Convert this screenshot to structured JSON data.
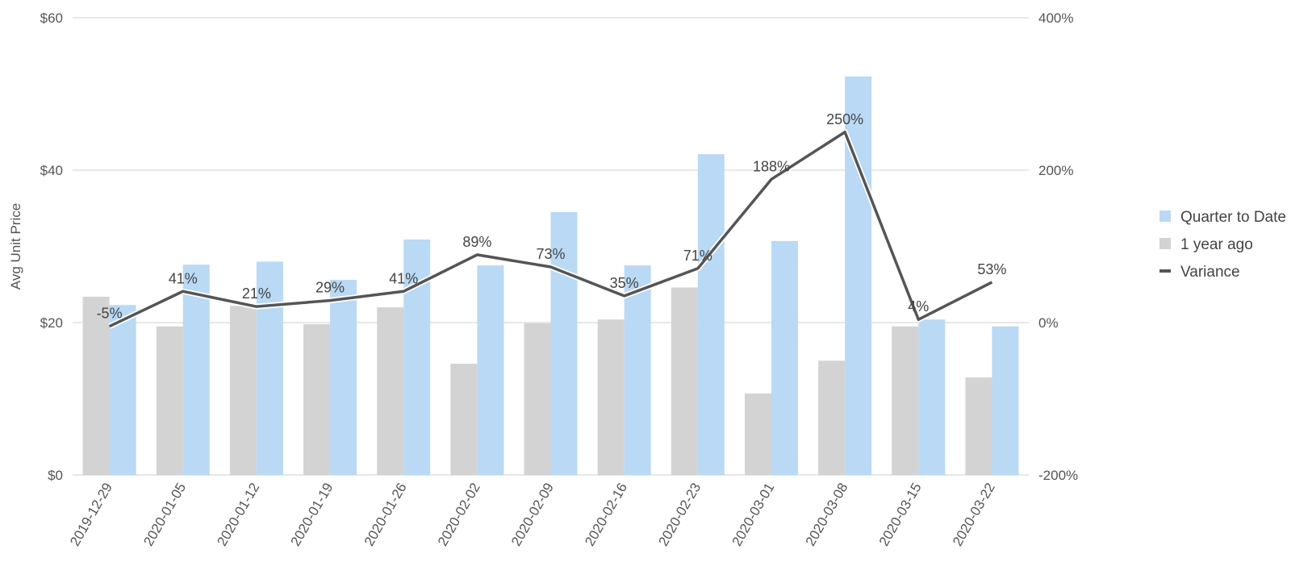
{
  "chart_data": {
    "type": "bar",
    "categories": [
      "2019-12-29",
      "2020-01-05",
      "2020-01-12",
      "2020-01-19",
      "2020-01-26",
      "2020-02-02",
      "2020-02-09",
      "2020-02-16",
      "2020-02-23",
      "2020-03-01",
      "2020-03-08",
      "2020-03-15",
      "2020-03-22"
    ],
    "series": [
      {
        "name": "1 year ago",
        "type": "bar",
        "axis": "left",
        "color": "#d3d3d3",
        "values": [
          23.4,
          19.5,
          22.2,
          19.8,
          22.0,
          14.6,
          19.9,
          20.4,
          24.6,
          10.7,
          15.0,
          19.5,
          12.8
        ]
      },
      {
        "name": "Quarter to Date",
        "type": "bar",
        "axis": "left",
        "color": "#b9d9f5",
        "values": [
          22.3,
          27.6,
          28.0,
          25.6,
          30.9,
          27.5,
          34.5,
          27.5,
          42.1,
          30.7,
          52.3,
          20.4,
          19.5
        ]
      },
      {
        "name": "Variance",
        "type": "line",
        "axis": "right",
        "color": "#555555",
        "values": [
          -5,
          41,
          21,
          29,
          41,
          89,
          73,
          35,
          71,
          188,
          250,
          4,
          53
        ],
        "labels": [
          "-5%",
          "41%",
          "21%",
          "29%",
          "41%",
          "89%",
          "73%",
          "35%",
          "71%",
          "188%",
          "250%",
          "4%",
          "53%"
        ]
      }
    ],
    "ylabel": "Avg Unit Price",
    "ylim": [
      0,
      60
    ],
    "yticks": [
      "$0",
      "$20",
      "$40",
      "$60"
    ],
    "y2lim": [
      -200,
      400
    ],
    "y2ticks": [
      "-200%",
      "0%",
      "200%",
      "400%"
    ],
    "grid": true,
    "legend": {
      "position": "right",
      "items": [
        {
          "label": "Quarter to Date",
          "color": "#b9d9f5",
          "symbol": "square"
        },
        {
          "label": "1 year ago",
          "color": "#d3d3d3",
          "symbol": "square"
        },
        {
          "label": "Variance",
          "color": "#555555",
          "symbol": "line"
        }
      ]
    }
  }
}
